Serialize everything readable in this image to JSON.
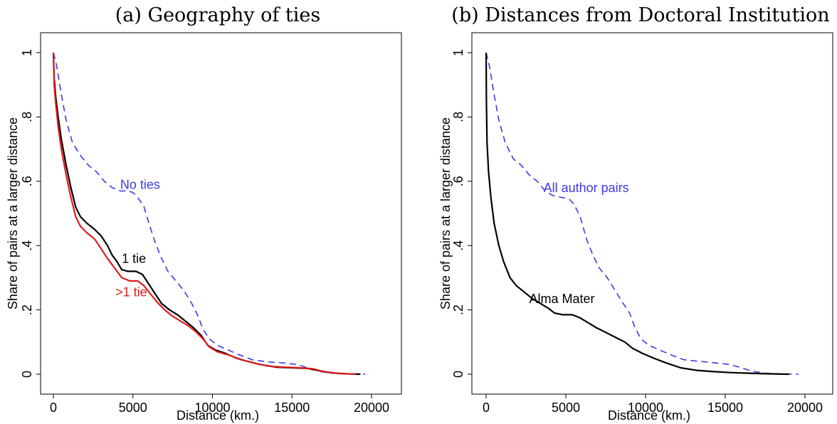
{
  "chart_data": [
    {
      "type": "line",
      "title": "(a) Geography of ties",
      "xlabel": "Distance (km.)",
      "ylabel": "Share of pairs at a larger distance",
      "xlim": [
        0,
        20000
      ],
      "ylim": [
        0,
        1
      ],
      "x_ticks": [
        0,
        5000,
        10000,
        15000,
        20000
      ],
      "x_tick_labels": [
        "0",
        "5000",
        "10000",
        "15000",
        "20000"
      ],
      "y_ticks": [
        0,
        0.2,
        0.4,
        0.6,
        0.8,
        1
      ],
      "y_tick_labels": [
        "0",
        ".2",
        ".4",
        ".6",
        ".8",
        "1"
      ],
      "grid": false,
      "series": [
        {
          "name": "No ties",
          "color": "#3b3be6",
          "dash": "dashed",
          "label_at": [
            4200,
            0.59
          ],
          "points": [
            [
              0,
              1.0
            ],
            [
              200,
              0.96
            ],
            [
              500,
              0.87
            ],
            [
              800,
              0.79
            ],
            [
              1200,
              0.72
            ],
            [
              1700,
              0.68
            ],
            [
              2200,
              0.65
            ],
            [
              2700,
              0.63
            ],
            [
              3200,
              0.6
            ],
            [
              3700,
              0.58
            ],
            [
              4200,
              0.57
            ],
            [
              4700,
              0.57
            ],
            [
              5000,
              0.565
            ],
            [
              5300,
              0.55
            ],
            [
              5700,
              0.52
            ],
            [
              6000,
              0.47
            ],
            [
              6400,
              0.41
            ],
            [
              6800,
              0.36
            ],
            [
              7200,
              0.32
            ],
            [
              7700,
              0.29
            ],
            [
              8200,
              0.26
            ],
            [
              8700,
              0.22
            ],
            [
              9100,
              0.18
            ],
            [
              9400,
              0.14
            ],
            [
              9800,
              0.11
            ],
            [
              10300,
              0.09
            ],
            [
              11000,
              0.075
            ],
            [
              11700,
              0.06
            ],
            [
              12500,
              0.045
            ],
            [
              13500,
              0.038
            ],
            [
              14500,
              0.035
            ],
            [
              15300,
              0.03
            ],
            [
              16000,
              0.02
            ],
            [
              16800,
              0.008
            ],
            [
              17500,
              0.003
            ],
            [
              18500,
              0.001
            ],
            [
              19600,
              0.0
            ]
          ]
        },
        {
          "name": "1 tie",
          "color": "#000000",
          "dash": "solid",
          "label_at": [
            4300,
            0.36
          ],
          "points": [
            [
              0,
              1.0
            ],
            [
              50,
              0.92
            ],
            [
              150,
              0.86
            ],
            [
              300,
              0.8
            ],
            [
              500,
              0.73
            ],
            [
              800,
              0.65
            ],
            [
              1100,
              0.58
            ],
            [
              1400,
              0.52
            ],
            [
              1700,
              0.49
            ],
            [
              2100,
              0.47
            ],
            [
              2600,
              0.45
            ],
            [
              3000,
              0.43
            ],
            [
              3400,
              0.4
            ],
            [
              3700,
              0.37
            ],
            [
              4000,
              0.35
            ],
            [
              4300,
              0.325
            ],
            [
              4700,
              0.32
            ],
            [
              5200,
              0.32
            ],
            [
              5600,
              0.31
            ],
            [
              6000,
              0.28
            ],
            [
              6400,
              0.25
            ],
            [
              6800,
              0.22
            ],
            [
              7300,
              0.2
            ],
            [
              7800,
              0.185
            ],
            [
              8300,
              0.165
            ],
            [
              8800,
              0.145
            ],
            [
              9300,
              0.12
            ],
            [
              9700,
              0.09
            ],
            [
              10200,
              0.075
            ],
            [
              10800,
              0.065
            ],
            [
              11500,
              0.05
            ],
            [
              12200,
              0.04
            ],
            [
              13000,
              0.03
            ],
            [
              14000,
              0.022
            ],
            [
              15000,
              0.02
            ],
            [
              16000,
              0.018
            ],
            [
              16800,
              0.01
            ],
            [
              17500,
              0.004
            ],
            [
              18500,
              0.001
            ],
            [
              19300,
              0.0
            ]
          ]
        },
        {
          "name": ">1 tie",
          "color": "#e11b1b",
          "dash": "solid",
          "label_at": [
            3900,
            0.255
          ],
          "points": [
            [
              0,
              1.0
            ],
            [
              50,
              0.9
            ],
            [
              150,
              0.84
            ],
            [
              300,
              0.77
            ],
            [
              500,
              0.7
            ],
            [
              800,
              0.62
            ],
            [
              1100,
              0.55
            ],
            [
              1400,
              0.49
            ],
            [
              1700,
              0.46
            ],
            [
              2100,
              0.44
            ],
            [
              2600,
              0.42
            ],
            [
              3000,
              0.39
            ],
            [
              3400,
              0.36
            ],
            [
              3700,
              0.34
            ],
            [
              4000,
              0.32
            ],
            [
              4300,
              0.3
            ],
            [
              4800,
              0.29
            ],
            [
              5300,
              0.29
            ],
            [
              5700,
              0.275
            ],
            [
              6100,
              0.25
            ],
            [
              6500,
              0.225
            ],
            [
              7000,
              0.2
            ],
            [
              7500,
              0.18
            ],
            [
              8000,
              0.165
            ],
            [
              8500,
              0.15
            ],
            [
              9000,
              0.13
            ],
            [
              9400,
              0.11
            ],
            [
              9800,
              0.085
            ],
            [
              10300,
              0.07
            ],
            [
              11000,
              0.06
            ],
            [
              11800,
              0.045
            ],
            [
              12600,
              0.035
            ],
            [
              13500,
              0.025
            ],
            [
              14500,
              0.022
            ],
            [
              15500,
              0.02
            ],
            [
              16300,
              0.017
            ],
            [
              17000,
              0.008
            ],
            [
              18000,
              0.002
            ],
            [
              19000,
              0.0
            ]
          ]
        }
      ]
    },
    {
      "type": "line",
      "title": "(b) Distances from Doctoral Institution",
      "xlabel": "Distance (km.)",
      "ylabel": "Share of pairs at a larger distance",
      "xlim": [
        0,
        20000
      ],
      "ylim": [
        0,
        1
      ],
      "x_ticks": [
        0,
        5000,
        10000,
        15000,
        20000
      ],
      "x_tick_labels": [
        "0",
        "5000",
        "10000",
        "15000",
        "20000"
      ],
      "y_ticks": [
        0,
        0.2,
        0.4,
        0.6,
        0.8,
        1
      ],
      "y_tick_labels": [
        "0",
        ".2",
        ".4",
        ".6",
        ".8",
        "1"
      ],
      "grid": false,
      "series": [
        {
          "name": "All author pairs",
          "color": "#3b3be6",
          "dash": "dashed",
          "label_at": [
            3600,
            0.58
          ],
          "points": [
            [
              0,
              1.0
            ],
            [
              200,
              0.96
            ],
            [
              500,
              0.87
            ],
            [
              800,
              0.79
            ],
            [
              1200,
              0.72
            ],
            [
              1700,
              0.67
            ],
            [
              2200,
              0.65
            ],
            [
              2700,
              0.62
            ],
            [
              3200,
              0.6
            ],
            [
              3700,
              0.57
            ],
            [
              4200,
              0.555
            ],
            [
              4700,
              0.55
            ],
            [
              5200,
              0.545
            ],
            [
              5500,
              0.53
            ],
            [
              5900,
              0.49
            ],
            [
              6300,
              0.42
            ],
            [
              6700,
              0.37
            ],
            [
              7100,
              0.33
            ],
            [
              7600,
              0.3
            ],
            [
              8100,
              0.26
            ],
            [
              8600,
              0.22
            ],
            [
              9000,
              0.19
            ],
            [
              9300,
              0.15
            ],
            [
              9700,
              0.11
            ],
            [
              10200,
              0.09
            ],
            [
              10900,
              0.075
            ],
            [
              11600,
              0.06
            ],
            [
              12400,
              0.045
            ],
            [
              13400,
              0.04
            ],
            [
              14400,
              0.035
            ],
            [
              15300,
              0.03
            ],
            [
              16000,
              0.02
            ],
            [
              16700,
              0.009
            ],
            [
              17500,
              0.003
            ],
            [
              18500,
              0.001
            ],
            [
              19600,
              0.0
            ]
          ]
        },
        {
          "name": "Alma Mater",
          "color": "#000000",
          "dash": "solid",
          "label_at": [
            2700,
            0.235
          ],
          "points": [
            [
              0,
              1.0
            ],
            [
              20,
              0.85
            ],
            [
              60,
              0.72
            ],
            [
              150,
              0.63
            ],
            [
              300,
              0.55
            ],
            [
              500,
              0.47
            ],
            [
              800,
              0.4
            ],
            [
              1100,
              0.35
            ],
            [
              1500,
              0.3
            ],
            [
              1900,
              0.275
            ],
            [
              2400,
              0.255
            ],
            [
              2900,
              0.235
            ],
            [
              3400,
              0.22
            ],
            [
              3900,
              0.205
            ],
            [
              4300,
              0.19
            ],
            [
              4800,
              0.185
            ],
            [
              5400,
              0.185
            ],
            [
              5900,
              0.175
            ],
            [
              6400,
              0.16
            ],
            [
              6900,
              0.145
            ],
            [
              7500,
              0.13
            ],
            [
              8100,
              0.115
            ],
            [
              8700,
              0.1
            ],
            [
              9200,
              0.08
            ],
            [
              9800,
              0.065
            ],
            [
              10500,
              0.05
            ],
            [
              11300,
              0.035
            ],
            [
              12200,
              0.02
            ],
            [
              13200,
              0.012
            ],
            [
              14300,
              0.008
            ],
            [
              15300,
              0.005
            ],
            [
              16500,
              0.003
            ],
            [
              17800,
              0.001
            ],
            [
              19000,
              0.0
            ]
          ]
        }
      ]
    }
  ]
}
